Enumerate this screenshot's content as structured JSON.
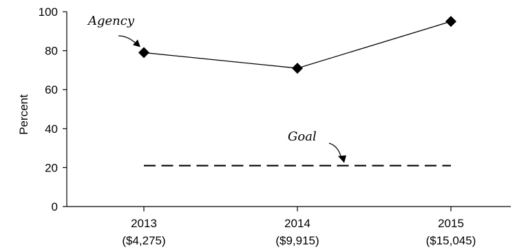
{
  "chart_data": {
    "type": "line",
    "title": "",
    "xlabel": "",
    "ylabel": "Percent",
    "ylim": [
      0,
      100
    ],
    "yticks": [
      0,
      20,
      40,
      60,
      80,
      100
    ],
    "categories": [
      {
        "year": "2013",
        "amount": "($4,275)"
      },
      {
        "year": "2014",
        "amount": "($9,915)"
      },
      {
        "year": "2015",
        "amount": "($15,045)"
      }
    ],
    "series": [
      {
        "name": "Agency",
        "style": "solid-with-diamond-markers",
        "values": [
          79,
          71,
          95
        ]
      },
      {
        "name": "Goal",
        "style": "dashed",
        "values": [
          21,
          21,
          21
        ]
      }
    ],
    "annotations": [
      {
        "text": "Agency",
        "points_to_series": "Agency",
        "points_to_index": 0
      },
      {
        "text": "Goal",
        "points_to_series": "Goal",
        "points_to_index": 1
      }
    ],
    "grid": false,
    "legend": "none"
  }
}
